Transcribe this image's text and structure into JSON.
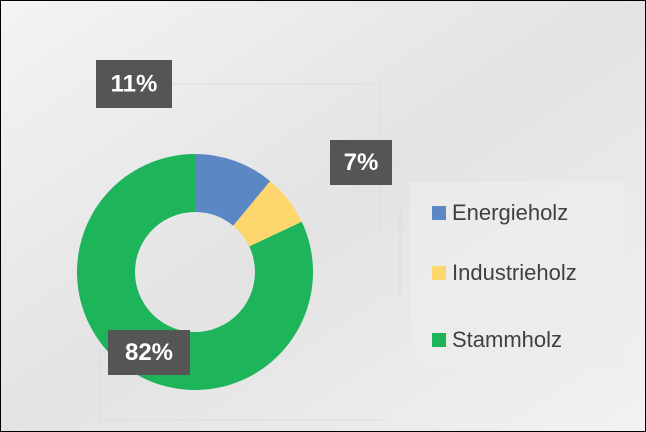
{
  "chart_data": {
    "type": "pie",
    "donut": true,
    "categories": [
      "Energieholz",
      "Industrieholz",
      "Stammholz"
    ],
    "values": [
      11,
      7,
      82
    ],
    "value_labels": [
      "11%",
      "7%",
      "82%"
    ],
    "colors": [
      "#5b87c5",
      "#fdd76e",
      "#1db45a"
    ],
    "legend": "right"
  }
}
